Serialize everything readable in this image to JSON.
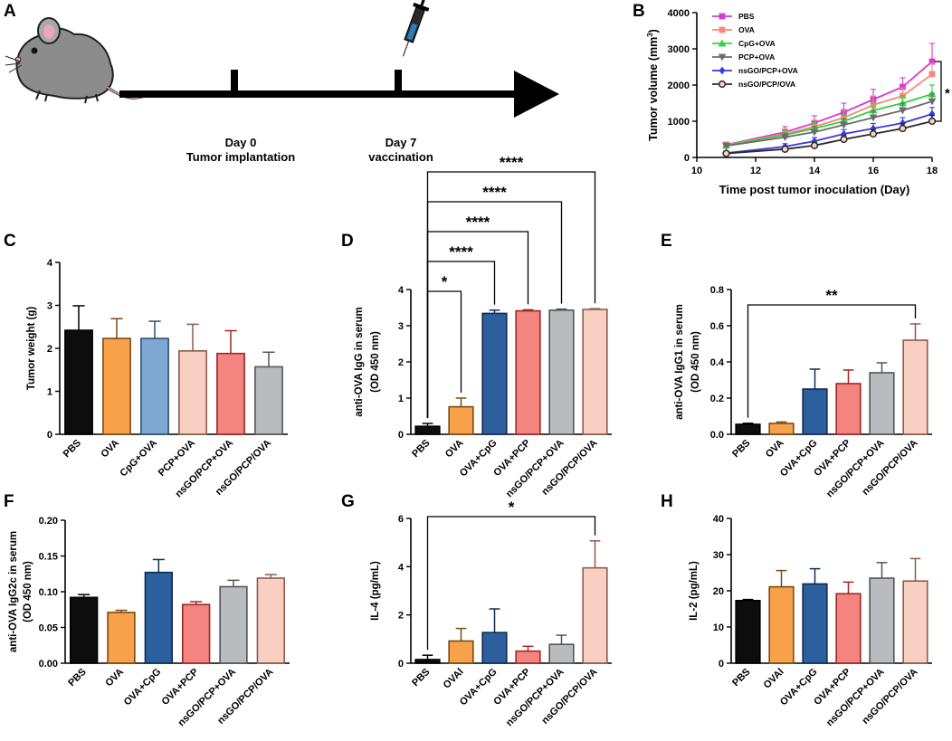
{
  "panel_letters": {
    "A": "A",
    "B": "B",
    "C": "C",
    "D": "D",
    "E": "E",
    "F": "F",
    "G": "G",
    "H": "H"
  },
  "timeline": {
    "day0": "Day 0",
    "day0_label": "Tumor implantation",
    "day7": "Day 7",
    "day7_label": "vaccination"
  },
  "chart_data": [
    {
      "panel": "B",
      "type": "line",
      "xlabel": "Time post tumor inoculation (Day)",
      "ylabel": "Tumor volume (mm",
      "ylabel_sup": "3",
      "ylabel_close": ")",
      "x": [
        11,
        13,
        14,
        15,
        16,
        17,
        18
      ],
      "xlim": [
        10,
        18
      ],
      "ylim": [
        0,
        4000
      ],
      "xticks": [
        "10",
        "12",
        "14",
        "16",
        "18"
      ],
      "yticks": [
        "0",
        "1000",
        "2000",
        "3000",
        "4000"
      ],
      "significance": "*",
      "series": [
        {
          "name": "PBS",
          "color": "#d43bd4",
          "marker": "square",
          "values": [
            350,
            700,
            950,
            1250,
            1600,
            1950,
            2650
          ],
          "err": [
            40,
            150,
            200,
            250,
            280,
            250,
            500
          ]
        },
        {
          "name": "OVA",
          "color": "#f4897a",
          "marker": "square",
          "values": [
            340,
            650,
            850,
            1100,
            1450,
            1700,
            2300
          ],
          "err": [
            40,
            140,
            180,
            200,
            250,
            220,
            300
          ]
        },
        {
          "name": "CpG+OVA",
          "color": "#2ed43b",
          "marker": "triangle-up",
          "values": [
            330,
            620,
            800,
            1000,
            1300,
            1500,
            1750
          ],
          "err": [
            40,
            130,
            170,
            180,
            200,
            200,
            250
          ]
        },
        {
          "name": "PCP+OVA",
          "color": "#6b6b6b",
          "marker": "triangle-down",
          "values": [
            320,
            560,
            700,
            900,
            1100,
            1300,
            1550
          ],
          "err": [
            40,
            110,
            150,
            160,
            180,
            190,
            220
          ]
        },
        {
          "name": "nsGO/PCP+OVA",
          "color": "#3a3adb",
          "marker": "diamond",
          "values": [
            120,
            300,
            450,
            650,
            800,
            950,
            1200
          ],
          "err": [
            25,
            80,
            100,
            120,
            140,
            150,
            180
          ]
        },
        {
          "name": "nsGO/PCP/OVA",
          "color": "#2a2a2a",
          "marker": "circle",
          "values": [
            110,
            230,
            330,
            500,
            650,
            800,
            1000
          ],
          "err": [
            20,
            60,
            80,
            100,
            120,
            130,
            160
          ]
        }
      ]
    },
    {
      "panel": "C",
      "type": "bar",
      "ylabel": "Tumor weight (g)",
      "ylim": [
        0,
        4
      ],
      "yticks": [
        "0",
        "1",
        "2",
        "3",
        "4"
      ],
      "categories": [
        "PBS",
        "OVA",
        "CpG+OVA",
        "PCP+OVA",
        "nsGO/PCP+OVA",
        "nsGO/PCP/OVA"
      ],
      "values": [
        2.42,
        2.23,
        2.23,
        1.94,
        1.88,
        1.57
      ],
      "err": [
        0.57,
        0.46,
        0.4,
        0.62,
        0.53,
        0.34
      ],
      "colors": [
        "#0d0d0d",
        "#f7a24b",
        "#7ea7d1",
        "#f9cfc1",
        "#f4847f",
        "#b9bcbf"
      ],
      "edges": [
        "#000000",
        "#7a4a10",
        "#2c5178",
        "#8c5a4e",
        "#a02525",
        "#555555"
      ],
      "brackets": []
    },
    {
      "panel": "D",
      "type": "bar",
      "ylabel": "anti-OVA IgG in serum",
      "ylabel2": "(OD 450 nm)",
      "ylim": [
        0,
        4
      ],
      "yticks": [
        "0",
        "1",
        "2",
        "3",
        "4"
      ],
      "categories": [
        "PBS",
        "OVA",
        "OVA+CpG",
        "OVA+PCP",
        "nsGO/PCP+OVA",
        "nsGO/PCP/OVA"
      ],
      "values": [
        0.22,
        0.76,
        3.34,
        3.41,
        3.43,
        3.45
      ],
      "err": [
        0.08,
        0.24,
        0.09,
        0.03,
        0.03,
        0.02
      ],
      "colors": [
        "#0d0d0d",
        "#f7a24b",
        "#2b5f9e",
        "#f4847f",
        "#b9bcbf",
        "#f9cfc1"
      ],
      "edges": [
        "#000000",
        "#7a4a10",
        "#0e2c55",
        "#a02525",
        "#555555",
        "#8c5a4e"
      ],
      "brackets": [
        {
          "to": 1,
          "label": "*",
          "level": 0
        },
        {
          "to": 2,
          "label": "****",
          "level": 1
        },
        {
          "to": 3,
          "label": "****",
          "level": 2
        },
        {
          "to": 4,
          "label": "****",
          "level": 3
        },
        {
          "to": 5,
          "label": "****",
          "level": 4
        }
      ]
    },
    {
      "panel": "E",
      "type": "bar",
      "ylabel": "anti-OVA IgG1 in serum",
      "ylabel2": "(OD 450 nm)",
      "ylim": [
        0,
        0.8
      ],
      "yticks": [
        "0.0",
        "0.2",
        "0.4",
        "0.6",
        "0.8"
      ],
      "categories": [
        "PBS",
        "OVA",
        "OVA+CpG",
        "OVA+PCP",
        "nsGO/PCP+OVA",
        "nsGO/PCP/OVA"
      ],
      "values": [
        0.055,
        0.06,
        0.25,
        0.28,
        0.34,
        0.52
      ],
      "err": [
        0.006,
        0.008,
        0.11,
        0.075,
        0.055,
        0.09
      ],
      "colors": [
        "#0d0d0d",
        "#f7a24b",
        "#2b5f9e",
        "#f4847f",
        "#b9bcbf",
        "#f9cfc1"
      ],
      "edges": [
        "#000000",
        "#7a4a10",
        "#0e2c55",
        "#a02525",
        "#555555",
        "#8c5a4e"
      ],
      "brackets": [
        {
          "to": 5,
          "label": "**",
          "level": 0
        }
      ]
    },
    {
      "panel": "F",
      "type": "bar",
      "ylabel": "anti-OVA IgG2c in serum",
      "ylabel2": "(OD 450 nm)",
      "ylim": [
        0,
        0.2
      ],
      "yticks": [
        "0.00",
        "0.05",
        "0.10",
        "0.15",
        "0.20"
      ],
      "categories": [
        "PBS",
        "OVA",
        "OVA+CpG",
        "OVA+PCP",
        "nsGO/PCP+OVA",
        "nsGO/PCP/OVA"
      ],
      "values": [
        0.092,
        0.071,
        0.127,
        0.082,
        0.107,
        0.119
      ],
      "err": [
        0.004,
        0.003,
        0.018,
        0.004,
        0.009,
        0.005
      ],
      "colors": [
        "#0d0d0d",
        "#f7a24b",
        "#2b5f9e",
        "#f4847f",
        "#b9bcbf",
        "#f9cfc1"
      ],
      "edges": [
        "#000000",
        "#7a4a10",
        "#0e2c55",
        "#a02525",
        "#555555",
        "#8c5a4e"
      ],
      "brackets": []
    },
    {
      "panel": "G",
      "type": "bar",
      "ylabel": "IL-4 (pg/mL)",
      "ylim": [
        0,
        6
      ],
      "yticks": [
        "0",
        "2",
        "4",
        "6"
      ],
      "categories": [
        "PBS",
        "OVAl",
        "OVA+CpG",
        "OVA+PCP",
        "nsGO/PCP+OVA",
        "nsGO/PCP/OVA"
      ],
      "values": [
        0.15,
        0.92,
        1.27,
        0.5,
        0.78,
        3.95
      ],
      "err": [
        0.18,
        0.52,
        0.98,
        0.2,
        0.38,
        1.12
      ],
      "colors": [
        "#0d0d0d",
        "#f7a24b",
        "#2b5f9e",
        "#f4847f",
        "#b9bcbf",
        "#f9cfc1"
      ],
      "edges": [
        "#000000",
        "#7a4a10",
        "#0e2c55",
        "#a02525",
        "#555555",
        "#8c5a4e"
      ],
      "brackets": [
        {
          "to": 5,
          "label": "*",
          "level": 0
        }
      ]
    },
    {
      "panel": "H",
      "type": "bar",
      "ylabel": "IL-2 (pg/mL)",
      "ylim": [
        0,
        40
      ],
      "yticks": [
        "0",
        "10",
        "20",
        "30",
        "40"
      ],
      "categories": [
        "PBS",
        "OVAl",
        "OVA+CpG",
        "OVA+PCP",
        "nsGO/PCP+OVA",
        "nsGO/PCP/OVA"
      ],
      "values": [
        17.3,
        21.1,
        21.9,
        19.2,
        23.5,
        22.7
      ],
      "err": [
        0.3,
        4.5,
        4.2,
        3.2,
        4.3,
        6.2
      ],
      "colors": [
        "#0d0d0d",
        "#f7a24b",
        "#2b5f9e",
        "#f4847f",
        "#b9bcbf",
        "#f9cfc1"
      ],
      "edges": [
        "#000000",
        "#7a4a10",
        "#0e2c55",
        "#a02525",
        "#555555",
        "#8c5a4e"
      ],
      "brackets": []
    }
  ]
}
